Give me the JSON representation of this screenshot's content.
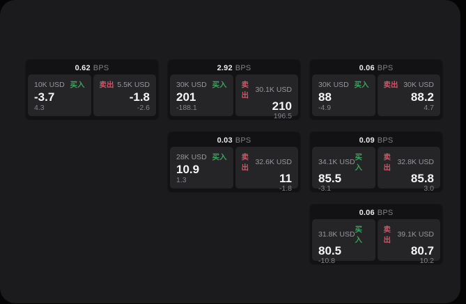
{
  "labels": {
    "bps_unit": "BPS",
    "buy": "买入",
    "sell": "卖出"
  },
  "colors": {
    "buy_accent": "#3ea05e",
    "sell_accent": "#d15468",
    "window_bg": "#1b1b1d",
    "card_bg": "#121214",
    "panel_bg": "#252528"
  },
  "cards": [
    {
      "spread": "0.62",
      "buy": {
        "size": "10K USD",
        "price": "-3.7",
        "change": "4.3"
      },
      "sell": {
        "size": "5.5K USD",
        "price": "-1.8",
        "change": "-2.6"
      }
    },
    {
      "spread": "2.92",
      "buy": {
        "size": "30K USD",
        "price": "201",
        "change": "-188.1"
      },
      "sell": {
        "size": "30.1K USD",
        "price": "210",
        "change": "196.5"
      }
    },
    {
      "spread": "0.06",
      "buy": {
        "size": "30K USD",
        "price": "88",
        "change": "-4.9"
      },
      "sell": {
        "size": "30K USD",
        "price": "88.2",
        "change": "4.7"
      }
    },
    {
      "spread": "0.03",
      "buy": {
        "size": "28K USD",
        "price": "10.9",
        "change": "1.3"
      },
      "sell": {
        "size": "32.6K USD",
        "price": "11",
        "change": "-1.8"
      }
    },
    {
      "spread": "0.09",
      "buy": {
        "size": "34.1K USD",
        "price": "85.5",
        "change": "-3.1"
      },
      "sell": {
        "size": "32.8K USD",
        "price": "85.8",
        "change": "3.0"
      }
    },
    {
      "spread": "0.06",
      "buy": {
        "size": "31.8K USD",
        "price": "80.5",
        "change": "-10.8"
      },
      "sell": {
        "size": "39.1K USD",
        "price": "80.7",
        "change": "10.2"
      }
    }
  ]
}
